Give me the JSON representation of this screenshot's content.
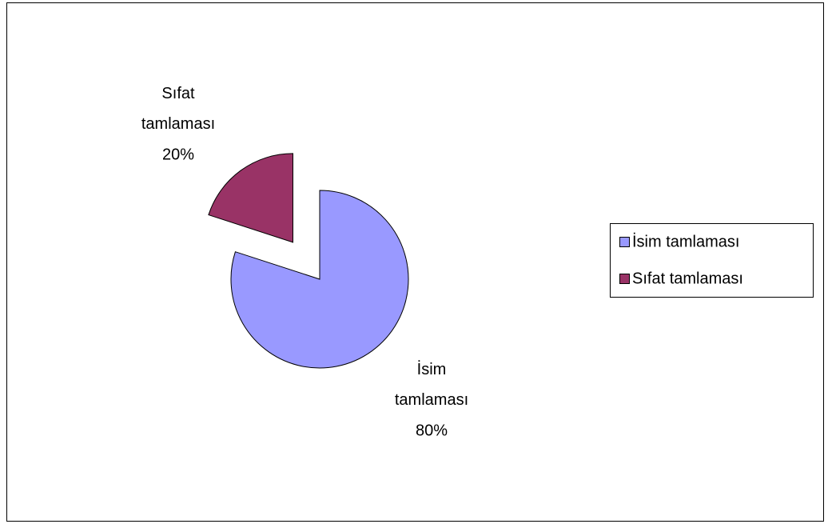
{
  "chart_data": {
    "type": "pie",
    "categories": [
      "İsim tamlaması",
      "Sıfat tamlaması"
    ],
    "values": [
      80,
      20
    ],
    "value_labels": [
      "80%",
      "20%"
    ],
    "colors": [
      "#9999ff",
      "#993366"
    ],
    "legend": "right"
  }
}
